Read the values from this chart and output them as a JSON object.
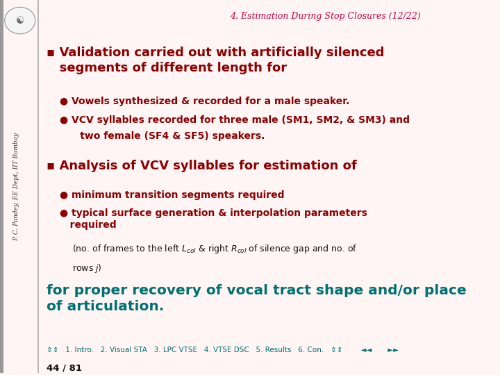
{
  "bg_color": "#fff5f5",
  "title": "4. Estimation During Stop Closures (12/22)",
  "title_color": "#cc0044",
  "title_fontsize": 9,
  "left_label": "P. C. Pandey, EE Dept, IIT Bombay",
  "left_label_color": "#333333",
  "bullet_color": "#8b0000",
  "teal_color": "#007070",
  "black_color": "#111111",
  "section1_bullet": "▪ Validation carried out with artificially silenced\n   segments of different length for",
  "bullet1a": "● Vowels synthesized & recorded for a male speaker.",
  "bullet1b": "● VCV syllables recorded for three male (SM1, SM2, & SM3) and",
  "bullet1b2": "      two female (SF4 & SF5) speakers.",
  "section2_bullet": "▪ Analysis of VCV syllables for estimation of",
  "bullet2a": "● minimum transition segments required",
  "bullet2b": "● typical surface generation & interpolation parameters\n   required",
  "final_text": "for proper recovery of vocal tract shape and/or place\nof articulation.",
  "nav_text": "⇕⇕   1. Intro.   2. Visual STA   3. LPC VTSE   4. VTSE DSC   5. Results   6. Con.   ⇕⇕        ◄◄       ►►",
  "page_text": "44 / 81"
}
